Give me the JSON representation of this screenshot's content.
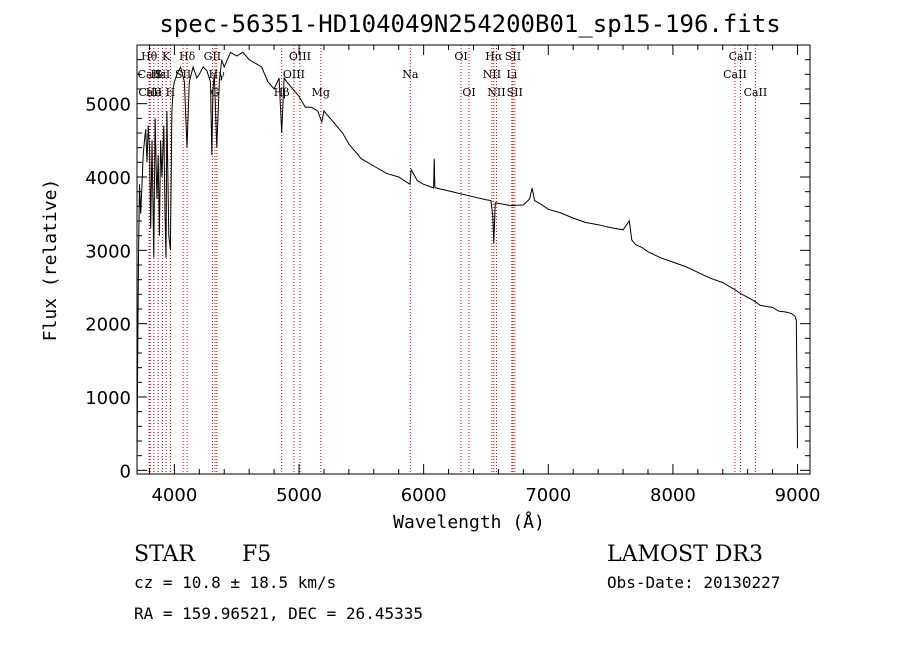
{
  "chart_data": {
    "type": "line",
    "title": "spec-56351-HD104049N254200B01_sp15-196.fits",
    "xlabel": "Wavelength (Å)",
    "ylabel": "Flux (relative)",
    "xlim": [
      3700,
      9100
    ],
    "ylim": [
      -50,
      5800
    ],
    "xticks": [
      4000,
      5000,
      6000,
      7000,
      8000,
      9000
    ],
    "yticks": [
      0,
      1000,
      2000,
      3000,
      4000,
      5000
    ],
    "xtick_labels": [
      "4000",
      "5000",
      "6000",
      "7000",
      "8000",
      "9000"
    ],
    "ytick_labels": [
      "0",
      "1000",
      "2000",
      "3000",
      "4000",
      "5000"
    ],
    "series": [
      {
        "name": "spectrum",
        "x": [
          3700,
          3705,
          3712,
          3720,
          3730,
          3740,
          3750,
          3760,
          3770,
          3780,
          3790,
          3800,
          3810,
          3820,
          3835,
          3845,
          3860,
          3870,
          3880,
          3889,
          3900,
          3915,
          3925,
          3933,
          3940,
          3955,
          3968,
          3980,
          3990,
          4000,
          4020,
          4050,
          4080,
          4101,
          4120,
          4150,
          4180,
          4200,
          4230,
          4260,
          4290,
          4300,
          4310,
          4320,
          4340,
          4360,
          4380,
          4400,
          4450,
          4500,
          4550,
          4600,
          4650,
          4700,
          4750,
          4800,
          4840,
          4861,
          4880,
          4900,
          4950,
          5000,
          5050,
          5100,
          5150,
          5183,
          5200,
          5250,
          5300,
          5350,
          5400,
          5450,
          5500,
          5600,
          5700,
          5800,
          5890,
          5900,
          5950,
          6000,
          6050,
          6080,
          6085,
          6090,
          6100,
          6200,
          6300,
          6400,
          6500,
          6540,
          6555,
          6563,
          6575,
          6600,
          6700,
          6800,
          6850,
          6870,
          6890,
          6950,
          7000,
          7100,
          7200,
          7300,
          7400,
          7500,
          7600,
          7650,
          7670,
          7700,
          7750,
          7800,
          7900,
          8000,
          8100,
          8200,
          8300,
          8400,
          8500,
          8542,
          8600,
          8662,
          8700,
          8800,
          8850,
          8900,
          8950,
          8980,
          8990,
          8995,
          9000
        ],
        "values": [
          50,
          1400,
          2900,
          3900,
          3500,
          3900,
          4300,
          4500,
          4650,
          4200,
          4700,
          4400,
          3300,
          4500,
          2900,
          4800,
          3700,
          4300,
          3200,
          4500,
          4000,
          4700,
          3500,
          2900,
          4900,
          3200,
          3000,
          4900,
          5200,
          5300,
          5400,
          5500,
          5300,
          4400,
          5300,
          5500,
          5350,
          5400,
          5500,
          5450,
          5300,
          4300,
          5200,
          5400,
          4400,
          5300,
          5600,
          5500,
          5700,
          5650,
          5700,
          5600,
          5550,
          5500,
          5300,
          5200,
          5350,
          4600,
          5350,
          5300,
          5200,
          5100,
          4950,
          4950,
          4900,
          4750,
          4900,
          4800,
          4700,
          4600,
          4450,
          4350,
          4250,
          4150,
          4050,
          4000,
          3900,
          4100,
          3950,
          3900,
          3870,
          3850,
          4250,
          3860,
          3850,
          3810,
          3770,
          3730,
          3690,
          3680,
          3470,
          3100,
          3650,
          3640,
          3610,
          3620,
          3700,
          3850,
          3680,
          3620,
          3560,
          3510,
          3440,
          3380,
          3350,
          3310,
          3280,
          3400,
          3140,
          3080,
          3040,
          2980,
          2900,
          2840,
          2780,
          2700,
          2620,
          2560,
          2460,
          2410,
          2360,
          2300,
          2250,
          2220,
          2170,
          2160,
          2140,
          2100,
          2050,
          1300,
          300
        ]
      }
    ],
    "lines": [
      {
        "name": "Hθ",
        "wl": 3798,
        "row": 0
      },
      {
        "name": "CaII",
        "wl": 3800,
        "row": 1
      },
      {
        "name": "CaII",
        "wl": 3806,
        "row": 2
      },
      {
        "name": "He",
        "wl": 3835,
        "row": 2
      },
      {
        "name": "Hε",
        "wl": 3870,
        "row": 1
      },
      {
        "name": "K",
        "wl": 3934,
        "row": 0
      },
      {
        "name": "SiI",
        "wl": 3905,
        "row": 1
      },
      {
        "name": "H",
        "wl": 3968,
        "row": 2
      },
      {
        "name": "Hδ",
        "wl": 4102,
        "row": 0
      },
      {
        "name": "SII",
        "wl": 4070,
        "row": 1
      },
      {
        "name": "GII",
        "wl": 4305,
        "row": 0
      },
      {
        "name": "Hγ",
        "wl": 4340,
        "row": 1
      },
      {
        "name": "G",
        "wl": 4326,
        "row": 2
      },
      {
        "name": "Hβ",
        "wl": 4861,
        "row": 2
      },
      {
        "name": "OIII",
        "wl": 4959,
        "row": 1
      },
      {
        "name": "OIII",
        "wl": 5007,
        "row": 0
      },
      {
        "name": "Mg",
        "wl": 5175,
        "row": 2
      },
      {
        "name": "Na",
        "wl": 5893,
        "row": 1
      },
      {
        "name": "OI",
        "wl": 6300,
        "row": 0
      },
      {
        "name": "OI",
        "wl": 6364,
        "row": 2
      },
      {
        "name": "Hα",
        "wl": 6563,
        "row": 0
      },
      {
        "name": "NII",
        "wl": 6548,
        "row": 1
      },
      {
        "name": "NII",
        "wl": 6584,
        "row": 2
      },
      {
        "name": "SII",
        "wl": 6717,
        "row": 0
      },
      {
        "name": "Li",
        "wl": 6708,
        "row": 1
      },
      {
        "name": "SII",
        "wl": 6731,
        "row": 2
      },
      {
        "name": "CaII",
        "wl": 8542,
        "row": 0
      },
      {
        "name": "CaII",
        "wl": 8498,
        "row": 1
      },
      {
        "name": "CaII",
        "wl": 8662,
        "row": 2
      }
    ]
  },
  "info": {
    "object_class": "STAR",
    "subclass": "F5",
    "survey": "LAMOST DR3",
    "cz": "cz = 10.8 ± 18.5 km/s",
    "obs_date": "Obs-Date: 20130227",
    "coords": "RA = 159.96521, DEC =  26.45335"
  },
  "colors": {
    "axis": "#000000",
    "spectrum": "#000000",
    "line_marker": "#cc0000"
  }
}
